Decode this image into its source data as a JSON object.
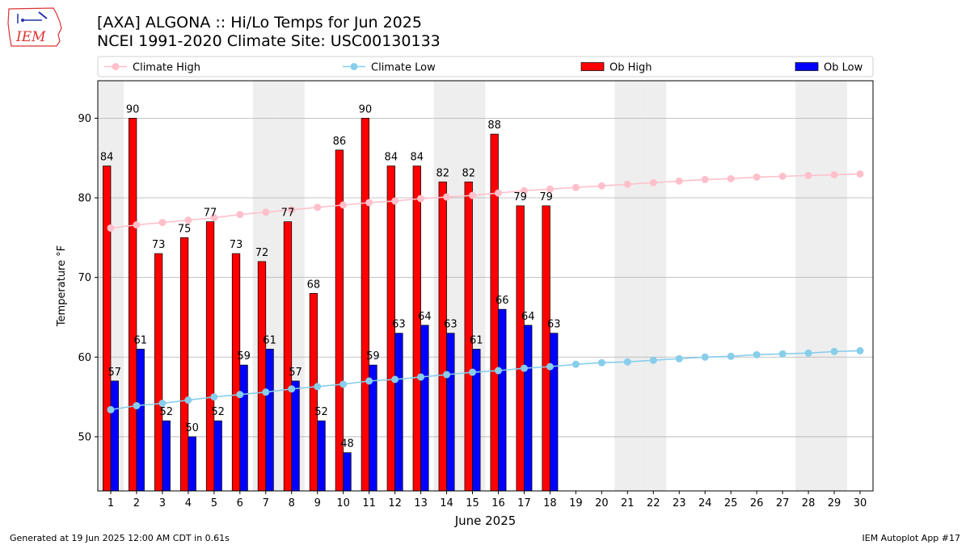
{
  "header": {
    "title_line1": "[AXA] ALGONA :: Hi/Lo Temps for Jun 2025",
    "title_line2": "NCEI 1991-2020 Climate Site: USC00130133"
  },
  "logo": {
    "text": "IEM"
  },
  "footer": {
    "generated": "Generated at 19 Jun 2025 12:00 AM CDT in 0.61s",
    "app": "IEM Autoplot App #17"
  },
  "colors": {
    "ob_high": "#ff0000",
    "ob_low": "#0000ff",
    "climate_high": "#ffc0cb",
    "climate_low": "#87ceeb",
    "weekend_shade": "#eeeeee",
    "grid": "#b0b0b0"
  },
  "chart_data": {
    "type": "bar",
    "xlabel": "June 2025",
    "ylabel": "Temperature °F",
    "xlim": [
      0.5,
      30.5
    ],
    "ylim": [
      43.2,
      94.7
    ],
    "yticks": [
      50,
      60,
      70,
      80,
      90
    ],
    "x": [
      1,
      2,
      3,
      4,
      5,
      6,
      7,
      8,
      9,
      10,
      11,
      12,
      13,
      14,
      15,
      16,
      17,
      18,
      19,
      20,
      21,
      22,
      23,
      24,
      25,
      26,
      27,
      28,
      29,
      30
    ],
    "weekend_days": [
      1,
      7,
      8,
      14,
      15,
      21,
      22,
      28,
      29
    ],
    "grid": "horizontal",
    "legend_position": "top",
    "legend": [
      "Climate High",
      "Climate Low",
      "Ob High",
      "Ob Low"
    ],
    "series": [
      {
        "name": "Ob High",
        "kind": "bar",
        "x": [
          1,
          2,
          3,
          4,
          5,
          6,
          7,
          8,
          9,
          10,
          11,
          12,
          13,
          14,
          15,
          16,
          17,
          18
        ],
        "values": [
          84,
          90,
          73,
          75,
          77,
          73,
          72,
          77,
          68,
          86,
          90,
          84,
          84,
          82,
          82,
          88,
          79,
          79
        ]
      },
      {
        "name": "Ob Low",
        "kind": "bar",
        "x": [
          1,
          2,
          3,
          4,
          5,
          6,
          7,
          8,
          9,
          10,
          11,
          12,
          13,
          14,
          15,
          16,
          17,
          18
        ],
        "values": [
          57,
          61,
          52,
          50,
          52,
          59,
          61,
          57,
          52,
          48,
          59,
          63,
          64,
          63,
          61,
          66,
          64,
          63
        ]
      },
      {
        "name": "Climate High",
        "kind": "line",
        "x": [
          1,
          2,
          3,
          4,
          5,
          6,
          7,
          8,
          9,
          10,
          11,
          12,
          13,
          14,
          15,
          16,
          17,
          18,
          19,
          20,
          21,
          22,
          23,
          24,
          25,
          26,
          27,
          28,
          29,
          30
        ],
        "values": [
          76.2,
          76.6,
          76.9,
          77.2,
          77.5,
          77.9,
          78.2,
          78.5,
          78.8,
          79.1,
          79.4,
          79.6,
          79.9,
          80.1,
          80.3,
          80.6,
          80.9,
          81.1,
          81.3,
          81.5,
          81.7,
          81.9,
          82.1,
          82.3,
          82.4,
          82.6,
          82.7,
          82.8,
          82.9,
          83.0
        ]
      },
      {
        "name": "Climate Low",
        "kind": "line",
        "x": [
          1,
          2,
          3,
          4,
          5,
          6,
          7,
          8,
          9,
          10,
          11,
          12,
          13,
          14,
          15,
          16,
          17,
          18,
          19,
          20,
          21,
          22,
          23,
          24,
          25,
          26,
          27,
          28,
          29,
          30
        ],
        "values": [
          53.4,
          53.9,
          54.2,
          54.6,
          55.0,
          55.3,
          55.6,
          56.0,
          56.3,
          56.6,
          57.0,
          57.2,
          57.5,
          57.8,
          58.1,
          58.3,
          58.6,
          58.8,
          59.1,
          59.3,
          59.4,
          59.6,
          59.8,
          60.0,
          60.1,
          60.3,
          60.4,
          60.5,
          60.7,
          60.8
        ]
      }
    ]
  }
}
